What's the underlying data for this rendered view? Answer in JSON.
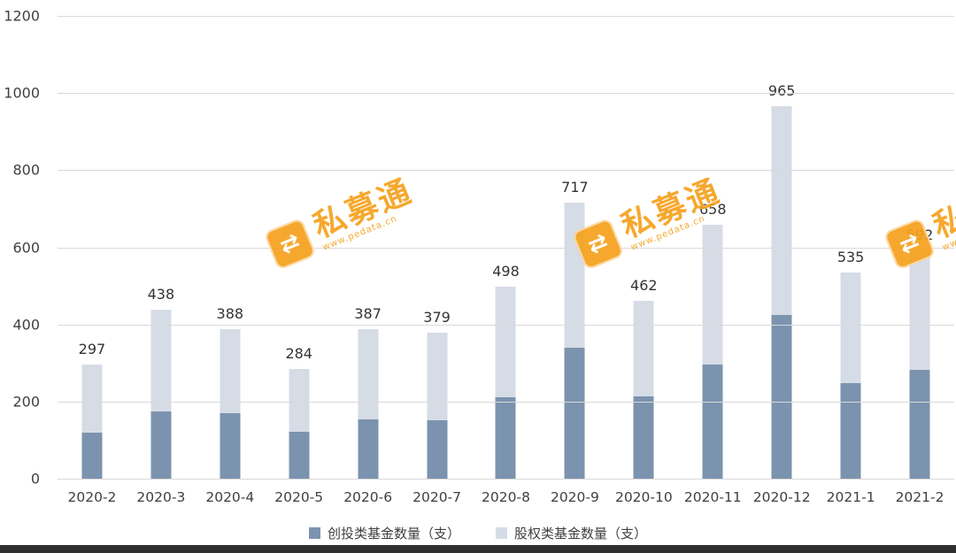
{
  "chart_data": {
    "type": "bar",
    "stacked": true,
    "categories": [
      "2020-2",
      "2020-3",
      "2020-4",
      "2020-5",
      "2020-6",
      "2020-7",
      "2020-8",
      "2020-9",
      "2020-10",
      "2020-11",
      "2020-12",
      "2021-1",
      "2021-2"
    ],
    "series": [
      {
        "name": "创投类基金数量（支）",
        "color": "#7b93ae",
        "values": [
          120,
          175,
          170,
          122,
          154,
          151,
          211,
          340,
          213,
          296,
          425,
          247,
          283
        ]
      },
      {
        "name": "股权类基金数量（支）",
        "color": "#d6dce6",
        "values": [
          177,
          263,
          218,
          162,
          233,
          228,
          287,
          377,
          249,
          362,
          540,
          288,
          309
        ]
      }
    ],
    "totals": [
      297,
      438,
      388,
      284,
      387,
      379,
      498,
      717,
      462,
      658,
      965,
      535,
      592
    ],
    "title": "",
    "xlabel": "",
    "ylabel": "",
    "ylim": [
      0,
      1200
    ],
    "yticks": [
      0,
      200,
      400,
      600,
      800,
      1000,
      1200
    ],
    "grid": true,
    "legend_position": "bottom"
  },
  "watermark": {
    "text": "私募通",
    "subtext": "www.pedata.cn",
    "color": "#f6a21f",
    "logo_glyph": "⇄"
  }
}
